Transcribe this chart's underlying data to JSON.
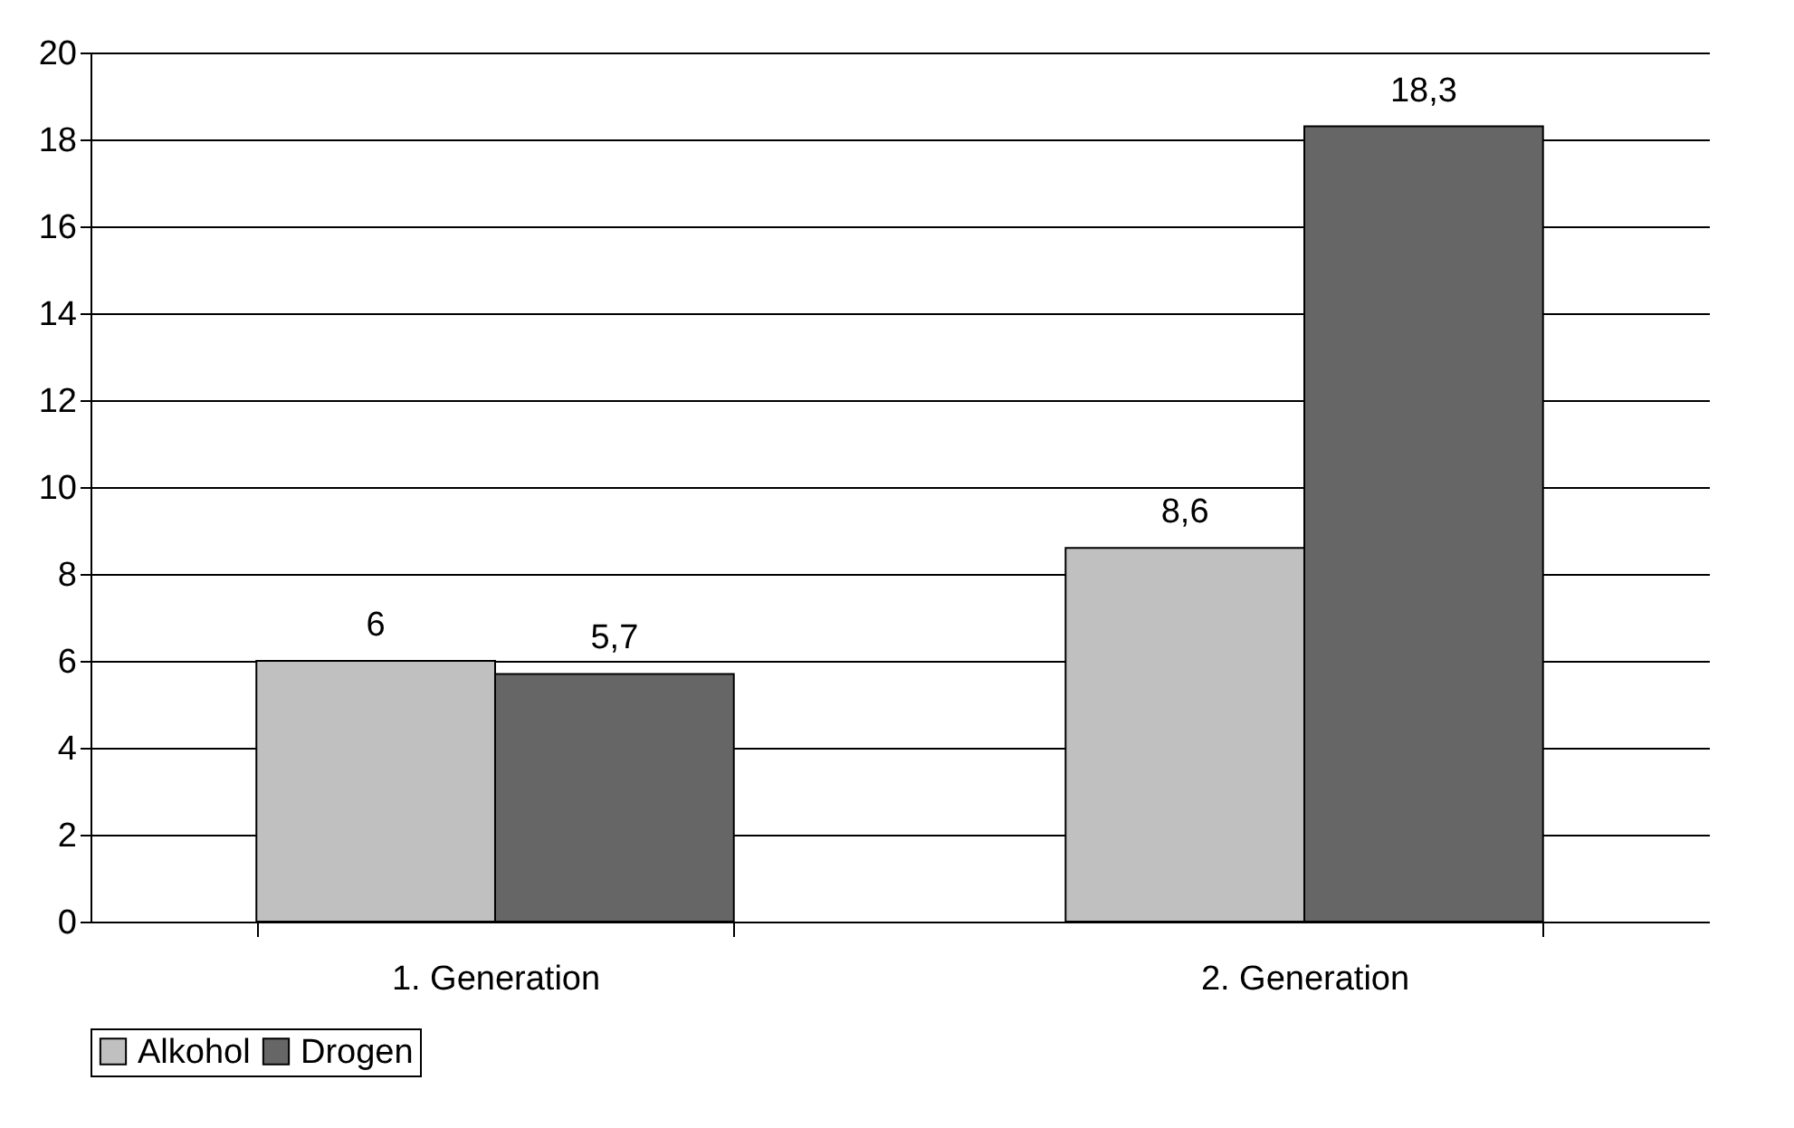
{
  "chart_data": {
    "type": "bar",
    "categories": [
      "1. Generation",
      "2. Generation"
    ],
    "series": [
      {
        "name": "Alkohol",
        "color": "#c0c0c0",
        "values": [
          6,
          8.6
        ],
        "value_labels": [
          "6",
          "8,6"
        ]
      },
      {
        "name": "Drogen",
        "color": "#666666",
        "values": [
          5.7,
          18.3
        ],
        "value_labels": [
          "5,7",
          "18,3"
        ]
      }
    ],
    "ylim": [
      0,
      20
    ],
    "yticks": [
      0,
      2,
      4,
      6,
      8,
      10,
      12,
      14,
      16,
      18,
      20
    ],
    "grid": "y",
    "legend": "bottom"
  }
}
